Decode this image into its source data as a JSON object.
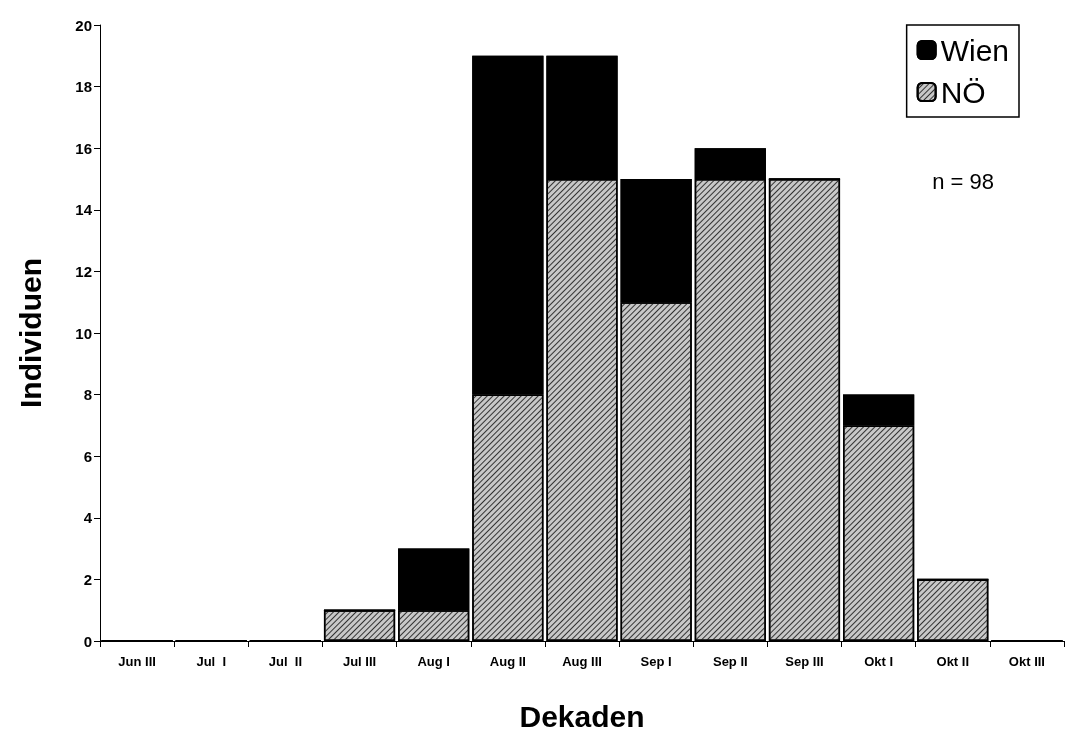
{
  "chart_data": {
    "type": "bar",
    "xlabel": "Dekaden",
    "ylabel": "Individuen",
    "categories": [
      "Jun III",
      "Jul  I",
      "Jul  II",
      "Jul III",
      "Aug I",
      "Aug II",
      "Aug III",
      "Sep I",
      "Sep II",
      "Sep III",
      "Okt I",
      "Okt II",
      "Okt III"
    ],
    "series": [
      {
        "name": "NÖ",
        "color": "#c8c8c8",
        "values": [
          0,
          0,
          0,
          1,
          1,
          8,
          15,
          11,
          15,
          15,
          7,
          2,
          0
        ]
      },
      {
        "name": "Wien",
        "color": "#000000",
        "values": [
          0,
          0,
          0,
          0,
          2,
          11,
          4,
          4,
          1,
          0,
          1,
          0,
          0
        ]
      }
    ],
    "stacked": true,
    "ylim": [
      0,
      20
    ],
    "yticks": [
      0,
      2,
      4,
      6,
      8,
      10,
      12,
      14,
      16,
      18,
      20
    ],
    "grid": false,
    "legend": "top right",
    "annotations": [
      "n = 98"
    ]
  }
}
